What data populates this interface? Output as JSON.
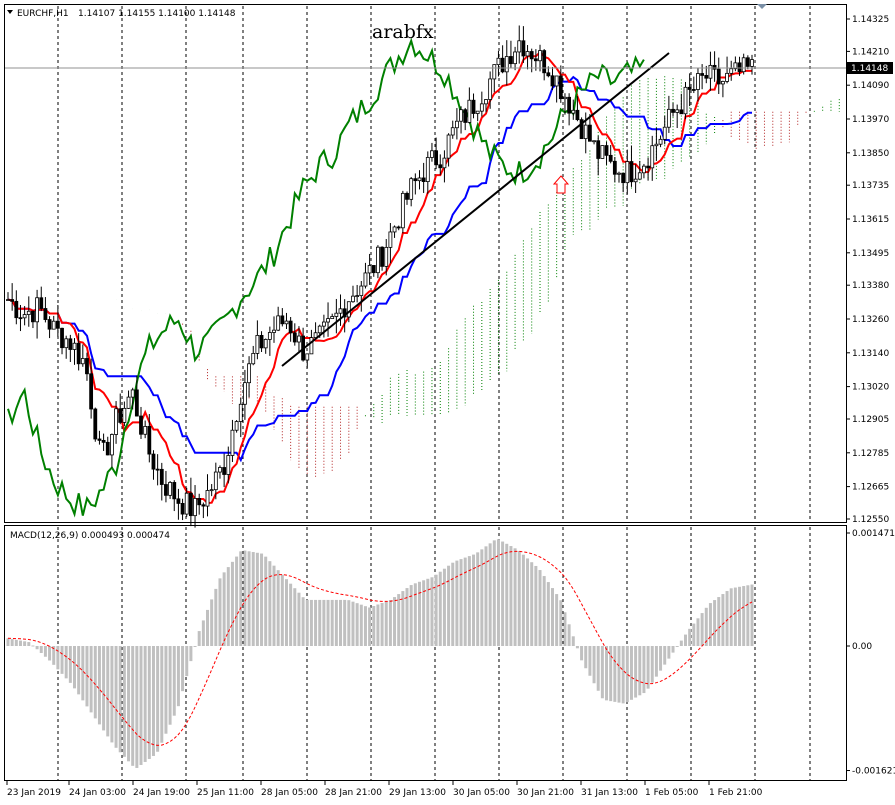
{
  "header": {
    "symbol": "EURCHF,H1",
    "ohlc": "1.14107 1.14155 1.14100 1.14148"
  },
  "watermark": "arabfx",
  "macd_label": "MACD(12,26,9) 0.000493 0.000474",
  "colors": {
    "background": "#ffffff",
    "candle": "#000000",
    "tenkan": "#ff0000",
    "kijun": "#0000ff",
    "chikou": "#008000",
    "cloud_up": "#008000",
    "cloud_down": "#b22222",
    "macd_hist": "#c0c0c0",
    "macd_signal": "#ff0000",
    "grid": "#000000",
    "trendline": "#000000",
    "arrow": "#ff0000"
  },
  "chart_data": [
    {
      "type": "candlestick",
      "panel": "price",
      "title": "",
      "price_axis_ticks": [
        "1.14325",
        "1.14210",
        "1.14090",
        "1.13970",
        "1.13850",
        "1.13735",
        "1.13615",
        "1.13495",
        "1.13380",
        "1.13260",
        "1.13140",
        "1.13020",
        "1.12905",
        "1.12785",
        "1.12665",
        "1.12550"
      ],
      "price_axis_tick_values": [
        1.14325,
        1.1421,
        1.1409,
        1.1397,
        1.1385,
        1.13735,
        1.13615,
        1.13495,
        1.1338,
        1.1326,
        1.1314,
        1.1302,
        1.12905,
        1.12785,
        1.12665,
        1.1255
      ],
      "ylim": [
        1.1254,
        1.1441
      ],
      "current_price_label": "1.14148",
      "current_price": 1.14148,
      "time_axis_ticks": [
        "23 Jan 2019",
        "24 Jan 03:00",
        "24 Jan 19:00",
        "25 Jan 11:00",
        "28 Jan 05:00",
        "28 Jan 21:00",
        "29 Jan 13:00",
        "30 Jan 05:00",
        "30 Jan 21:00",
        "31 Jan 13:00",
        "1 Feb 05:00",
        "1 Feb 21:00"
      ],
      "grid": "vertical dashed",
      "indicators": [
        "Ichimoku (tenkan, kijun, chikou, cloud)"
      ],
      "approx_close_path": [
        1.1333,
        1.1328,
        1.133,
        1.1322,
        1.1318,
        1.131,
        1.1275,
        1.129,
        1.13,
        1.128,
        1.1268,
        1.1262,
        1.1258,
        1.1265,
        1.1275,
        1.13,
        1.1315,
        1.1322,
        1.1326,
        1.1315,
        1.1318,
        1.1325,
        1.1334,
        1.134,
        1.1348,
        1.136,
        1.1372,
        1.138,
        1.1385,
        1.1395,
        1.1402,
        1.141,
        1.1418,
        1.1425,
        1.142,
        1.1415,
        1.1405,
        1.1395,
        1.1385,
        1.138,
        1.1378,
        1.1382,
        1.139,
        1.14,
        1.1406,
        1.1412,
        1.141,
        1.1413,
        1.14148
      ]
    },
    {
      "type": "bar",
      "panel": "macd",
      "series": [
        {
          "name": "MACD(12,26,9)"
        }
      ],
      "axis_ticks": [
        "0.001471",
        "0.00",
        "-0.001621"
      ],
      "axis_tick_values": [
        0.001471,
        0.0,
        -0.001621
      ],
      "ylim": [
        -0.001621,
        0.001471
      ],
      "approx_histogram_path": [
        0.0001,
        5e-05,
        -0.0002,
        -0.0005,
        -0.0009,
        -0.0013,
        -0.0016,
        -0.0014,
        -0.0008,
        0.0002,
        0.0009,
        0.00125,
        0.0012,
        0.0009,
        0.0006,
        0.0006,
        0.0006,
        0.0005,
        0.0006,
        0.0008,
        0.0009,
        0.0011,
        0.0012,
        0.0014,
        0.00125,
        0.001,
        0.0006,
        -0.0002,
        -0.0007,
        -0.00075,
        -0.0006,
        -0.0002,
        0.0002,
        0.00055,
        0.00075,
        0.0008
      ]
    }
  ]
}
